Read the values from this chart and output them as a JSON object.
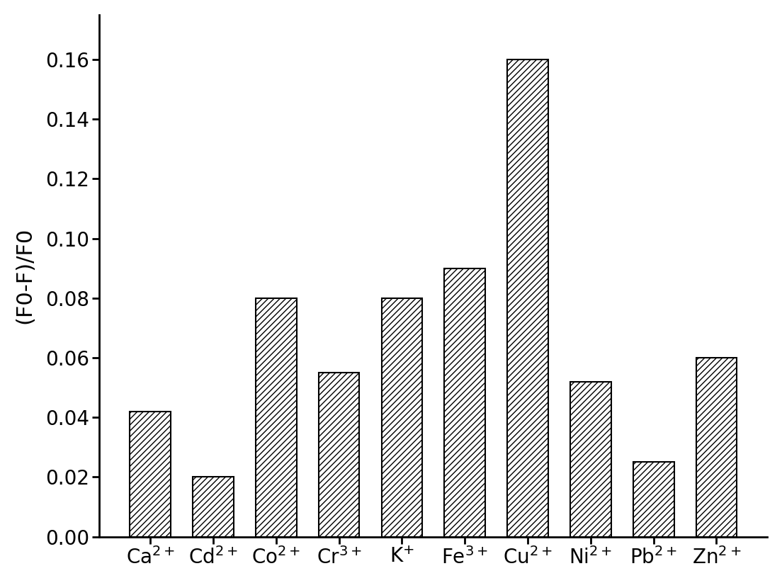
{
  "categories_latex": [
    "Ca$^{2+}$",
    "Cd$^{2+}$",
    "Co$^{2+}$",
    "Cr$^{3+}$",
    "K$^{+}$",
    "Fe$^{3+}$",
    "Cu$^{2+}$",
    "Ni$^{2+}$",
    "Pb$^{2+}$",
    "Zn$^{2+}$"
  ],
  "values": [
    0.042,
    0.02,
    0.08,
    0.055,
    0.08,
    0.09,
    0.16,
    0.052,
    0.025,
    0.06
  ],
  "ylabel": "(F0-F)/F0",
  "ylim": [
    0,
    0.175
  ],
  "yticks": [
    0.0,
    0.02,
    0.04,
    0.06,
    0.08,
    0.1,
    0.12,
    0.14,
    0.16
  ],
  "bar_color": "#ffffff",
  "bar_edgecolor": "#000000",
  "hatch": "////",
  "bar_width": 0.65,
  "figsize": [
    11.04,
    8.23
  ],
  "dpi": 100,
  "background_color": "#ffffff",
  "spine_linewidth": 2.0,
  "tick_labelsize": 20,
  "ylabel_fontsize": 22,
  "xlabel_labelsize": 20
}
